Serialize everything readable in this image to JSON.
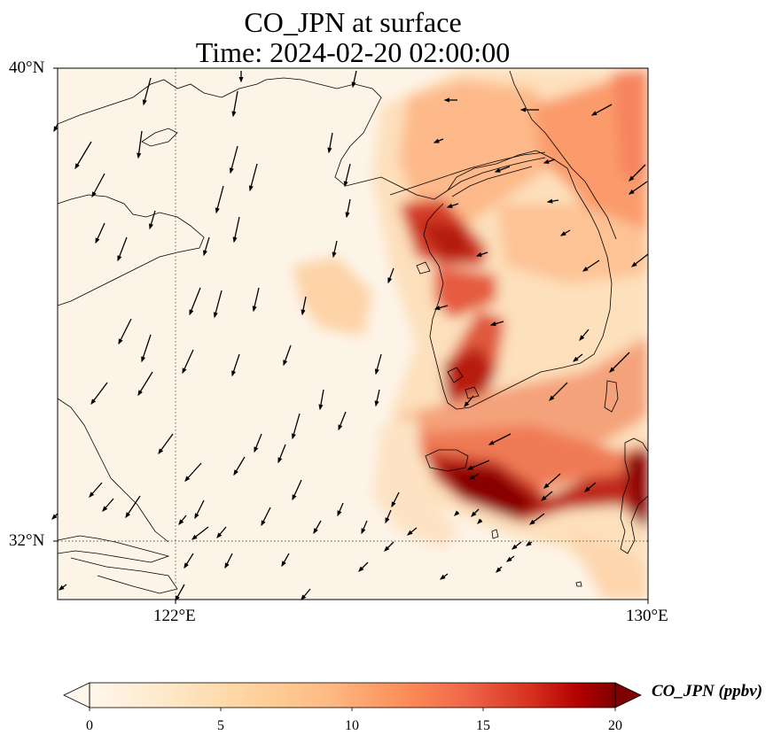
{
  "title": {
    "line1": "CO_JPN at surface",
    "line2": "Time: 2024-02-20 02:00:00"
  },
  "axes": {
    "lat_labels": [
      "40°N",
      "32°N"
    ],
    "lon_labels": [
      "122°E",
      "130°E"
    ],
    "lon_range": [
      120,
      130
    ],
    "lat_range": [
      31,
      40
    ],
    "gridlines": {
      "lons": [
        122
      ],
      "lats": [
        32
      ],
      "style": "dotted"
    }
  },
  "colorbar": {
    "label": "CO_JPN (ppbv)",
    "ticks": [
      "0",
      "5",
      "10",
      "15",
      "20"
    ],
    "range": [
      0,
      20
    ],
    "extend": "both",
    "colormap": "OrRd",
    "colors": [
      "#fff7ec",
      "#fee8c8",
      "#fdd49e",
      "#fdbb84",
      "#fc8d59",
      "#ef6548",
      "#d7301f",
      "#b30000",
      "#7f0000"
    ]
  },
  "colors": {
    "background_low": "#fdf4e8",
    "coastline": "#000000"
  }
}
